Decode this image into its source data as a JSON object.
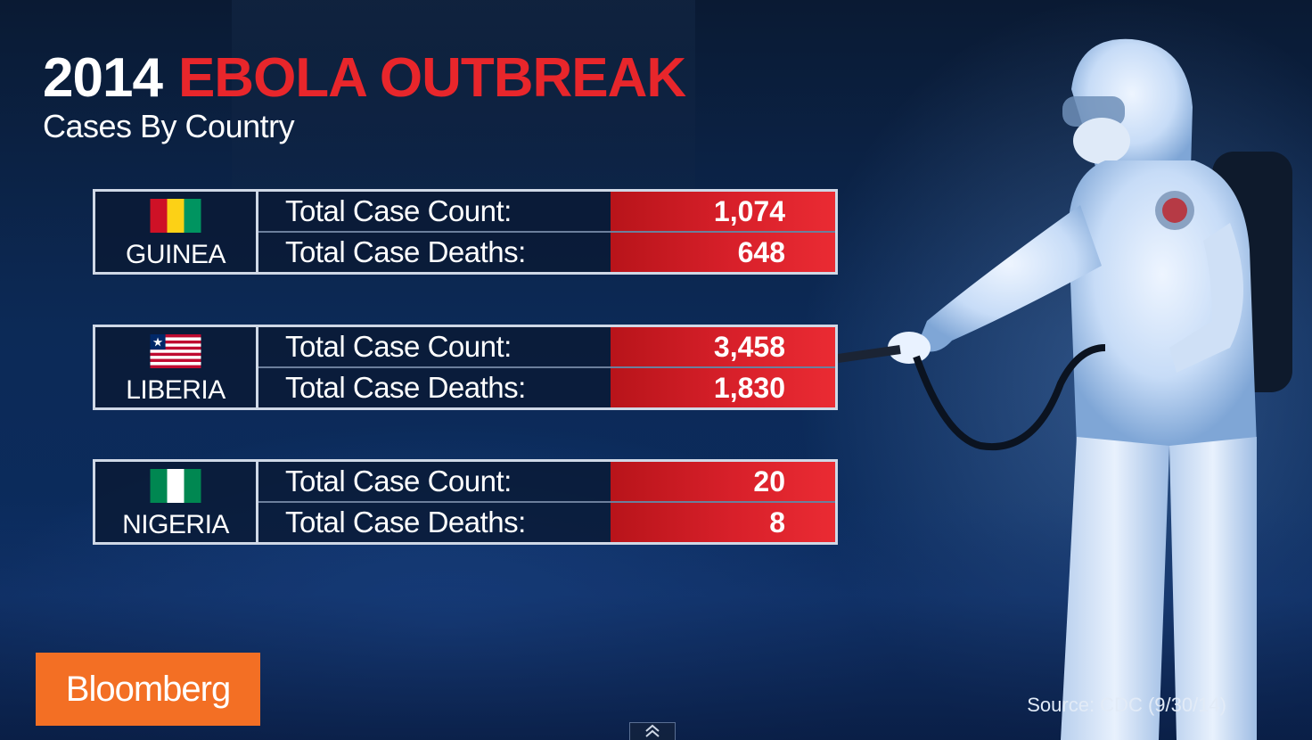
{
  "title": {
    "year": "2014",
    "main": "EBOLA OUTBREAK",
    "subtitle": "Cases By Country"
  },
  "countries": [
    {
      "name": "GUINEA",
      "flag_icon": "guinea-flag-icon",
      "flag_colors": [
        "#ce1126",
        "#fcd116",
        "#009460"
      ],
      "case_count_label": "Total Case Count:",
      "case_count": "1,074",
      "deaths_label": "Total Case Deaths:",
      "deaths": "648"
    },
    {
      "name": "LIBERIA",
      "flag_icon": "liberia-flag-icon",
      "flag_colors": [
        "#bf0a30",
        "#ffffff",
        "#002868"
      ],
      "case_count_label": "Total Case Count:",
      "case_count": "3,458",
      "deaths_label": "Total Case Deaths:",
      "deaths": "1,830"
    },
    {
      "name": "NIGERIA",
      "flag_icon": "nigeria-flag-icon",
      "flag_colors": [
        "#008751",
        "#ffffff",
        "#008751"
      ],
      "case_count_label": "Total Case Count:",
      "case_count": "20",
      "deaths_label": "Total Case Deaths:",
      "deaths": "8"
    }
  ],
  "brand": {
    "label": "Bloomberg",
    "color": "#f36f24"
  },
  "source": "Source: CDC (9/30/14)",
  "colors": {
    "accent_red": "#e8262b",
    "value_red": "#d8202a",
    "panel_border": "#cfd8e6"
  },
  "controls": {
    "expand_icon": "chevron-up-icon"
  }
}
